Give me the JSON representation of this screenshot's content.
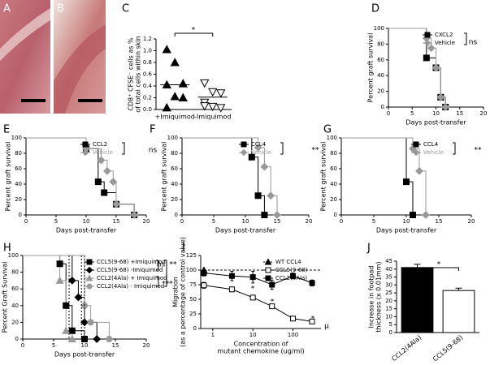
{
  "images": [
    {
      "panel": "A"
    },
    {
      "panel": "B"
    }
  ],
  "chart_data": [
    {
      "type": "dot",
      "panel": "C",
      "ylabel": [
        "CD8⁺ CFSE⁻ cells as %",
        "of total cells within skin"
      ],
      "categories": [
        "+Imiquimod",
        "-Imiquimod"
      ],
      "groups": [
        {
          "marker": "triangle",
          "color": "#000000",
          "values": [
            1.02,
            0.8,
            0.44,
            0.42,
            0.22,
            0.2,
            0.03
          ],
          "mean": 0.42
        },
        {
          "marker": "triangle-down",
          "color": "#ffffff",
          "values": [
            0.45,
            0.3,
            0.28,
            0.12,
            0.05,
            0.03,
            0.06
          ],
          "mean": 0.21
        }
      ],
      "ylim": [
        0,
        1.2
      ],
      "yticks": [
        {
          "value": 0,
          "label": "0.0"
        },
        0.2,
        0.4,
        0.6,
        0.8,
        {
          "value": 1,
          "label": "1.0"
        },
        1.2
      ],
      "annotations": [
        "*"
      ]
    },
    {
      "type": "survival",
      "panel": "D",
      "xlabel": "Days post-transfer",
      "ylabel": [
        "Percent graft survival"
      ],
      "xlim": [
        0,
        20
      ],
      "xticks": [
        0,
        5,
        10,
        15,
        20
      ],
      "ylim": [
        0,
        100
      ],
      "yticks": [
        0,
        20,
        40,
        60,
        80,
        100
      ],
      "series": [
        {
          "name": "CXCL2",
          "color": "#000000",
          "marker": "square",
          "x": [
            8,
            10,
            11,
            12
          ],
          "values": [
            62.5,
            50,
            12.5,
            0
          ]
        },
        {
          "name": "Vehicle",
          "color": "#999999",
          "marker": "diamond",
          "x": [
            8,
            9,
            10,
            11,
            12
          ],
          "values": [
            87.5,
            75,
            50,
            12.5,
            0
          ]
        }
      ],
      "annotations": [
        "ns"
      ]
    },
    {
      "type": "survival",
      "panel": "E",
      "xlabel": "Days post-transfer",
      "ylabel": [
        "Percent graft survival"
      ],
      "xlim": [
        0,
        20
      ],
      "xticks": [
        0,
        5,
        10,
        15,
        20
      ],
      "ylim": [
        0,
        100
      ],
      "yticks": [
        0,
        20,
        40,
        60,
        80,
        100
      ],
      "series": [
        {
          "name": "CCL2",
          "color": "#000000",
          "marker": "square",
          "x": [
            10,
            12,
            13,
            15,
            18
          ],
          "values": [
            86,
            43,
            29,
            14,
            0
          ]
        },
        {
          "name": "Vehicle",
          "color": "#999999",
          "marker": "diamond",
          "x": [
            10,
            12.5,
            13.5,
            14.5,
            15,
            18
          ],
          "values": [
            86,
            71,
            57,
            43,
            14,
            0
          ]
        }
      ],
      "legend_colored": true,
      "annotations": [
        "ns"
      ]
    },
    {
      "type": "survival",
      "panel": "F",
      "xlabel": "Days post-transfer",
      "ylabel": [
        "Percent graft survival"
      ],
      "xlim": [
        0,
        20
      ],
      "xticks": [
        0,
        5,
        10,
        15,
        20
      ],
      "ylim": [
        0,
        100
      ],
      "yticks": [
        0,
        20,
        40,
        60,
        80,
        100
      ],
      "series": [
        {
          "name": "CCL4",
          "color": "#000000",
          "marker": "square",
          "x": [
            11,
            12,
            13
          ],
          "values": [
            75,
            25,
            0
          ]
        },
        {
          "name": "Vehicle",
          "color": "#999999",
          "marker": "diamond",
          "x": [
            12,
            13,
            14,
            15
          ],
          "values": [
            87.5,
            62.5,
            25,
            0
          ]
        }
      ],
      "legend_colored": true,
      "annotations": [
        "**"
      ]
    },
    {
      "type": "survival",
      "panel": "G",
      "xlabel": "Days post-transfer",
      "ylabel": [
        "Percent graft survival"
      ],
      "xlim": [
        0,
        20
      ],
      "xticks": [
        0,
        5,
        10,
        15,
        20
      ],
      "ylim": [
        0,
        100
      ],
      "yticks": [
        0,
        20,
        40,
        60,
        80,
        100
      ],
      "series": [
        {
          "name": "CCL4",
          "color": "#000000",
          "marker": "square",
          "x": [
            10,
            11
          ],
          "values": [
            43,
            0
          ]
        },
        {
          "name": "Vehicle",
          "color": "#999999",
          "marker": "diamond",
          "x": [
            11,
            12,
            13
          ],
          "values": [
            86,
            57,
            0
          ]
        }
      ],
      "legend_colored": true,
      "annotations": [
        "**"
      ]
    },
    {
      "type": "survival",
      "panel": "H",
      "xlabel": "Days post-transfer",
      "ylabel": [
        "Percent Graft Survival"
      ],
      "xlim": [
        0,
        20
      ],
      "xticks": [
        0,
        5,
        10,
        15,
        20
      ],
      "ylim": [
        0,
        100
      ],
      "yticks": [
        0,
        20,
        40,
        60,
        80,
        100
      ],
      "series": [
        {
          "name": "CCL5(9-68) +Imiquimod",
          "color": "#000000",
          "marker": "square",
          "x": [
            6,
            7,
            8,
            10
          ],
          "values": [
            90,
            40,
            10,
            0
          ]
        },
        {
          "name": "CCL5(9-68) -Imiquimod",
          "color": "#000000",
          "marker": "diamond",
          "x": [
            8,
            9,
            10,
            12
          ],
          "values": [
            70,
            50,
            20,
            0
          ]
        },
        {
          "name": "CCL2(4Ala) + Imiquimod",
          "color": "#999999",
          "marker": "triangle",
          "x": [
            6,
            7,
            8
          ],
          "values": [
            70,
            10,
            0
          ]
        },
        {
          "name": "CCL2(4Ala) - Imiquimod",
          "color": "#999999",
          "marker": "circle",
          "x": [
            10,
            11,
            14
          ],
          "values": [
            40,
            20,
            0
          ]
        }
      ],
      "annotations": [
        "ns",
        "**",
        "***"
      ]
    },
    {
      "type": "line",
      "panel": "I",
      "xlabel": [
        "Concentration of",
        "mutant chemokine (ug/ml)"
      ],
      "ylabel": [
        "Migration",
        "(as a percentage of control value)"
      ],
      "xlog": true,
      "xlim": [
        0.5,
        500
      ],
      "xticks": [
        1,
        10,
        100
      ],
      "ylim": [
        0,
        125
      ],
      "yticks": [
        0,
        25,
        50,
        75,
        100,
        125
      ],
      "series": [
        {
          "name": "WT CCL4",
          "color": "#000000",
          "marker": "triangle",
          "dashed": true,
          "x": [
            0.6,
            500
          ],
          "values": [
            100,
            100
          ]
        },
        {
          "name": "CCL5(9-68)",
          "color": "#000000",
          "marker": "square-open",
          "x": [
            0.6,
            3,
            10,
            30,
            100,
            300
          ],
          "values": [
            74,
            67,
            53,
            38,
            17,
            12
          ],
          "errors": [
            5,
            4,
            3,
            2,
            2,
            2
          ]
        },
        {
          "name": "CCL2(4Ala)",
          "color": "#000000",
          "marker": "square",
          "x": [
            0.6,
            3,
            10,
            30,
            100,
            300
          ],
          "values": [
            95,
            90,
            88,
            75,
            90,
            78
          ],
          "errors": [
            5,
            8,
            10,
            8,
            5,
            5
          ]
        }
      ],
      "annotations": [
        "*",
        "*",
        "*",
        "*",
        "μ"
      ]
    },
    {
      "type": "bar",
      "panel": "J",
      "ylabel": [
        "Increase in footpad",
        "thickness (x 0.01mm)"
      ],
      "categories": [
        "CCL2(4Ala)",
        "CCL5(9-68)"
      ],
      "values": [
        41,
        26.5
      ],
      "errors": [
        2,
        1.5
      ],
      "colors": [
        "#000000",
        "#ffffff"
      ],
      "ylim": [
        0,
        45
      ],
      "yticks": [
        0,
        5,
        10,
        15,
        20,
        25,
        30,
        35,
        40,
        45
      ],
      "annotations": [
        "*"
      ]
    }
  ]
}
